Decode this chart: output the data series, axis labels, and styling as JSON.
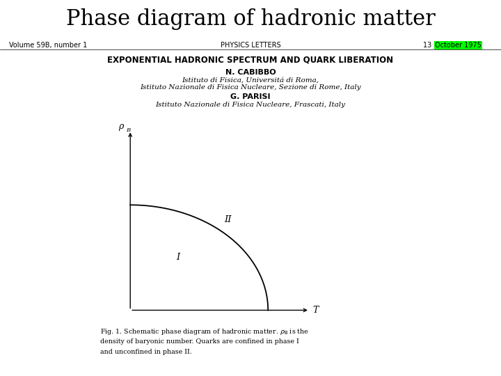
{
  "title": "Phase diagram of hadronic matter",
  "title_fontsize": 22,
  "title_font": "serif",
  "header_left": "Volume 59B, number 1",
  "header_center": "PHYSICS LETTERS",
  "header_right_prefix": "13 ",
  "header_right_highlight": "October 1975",
  "highlight_color": "#00ff00",
  "paper_title": "EXPONENTIAL HADRONIC SPECTRUM AND QUARK LIBERATION",
  "author1": "N. CABIBBO",
  "affil1a": "Istituto di Fisica, Universitá di Roma,",
  "affil1b": "Istituto Nazionale di Fisica Nucleare, Sezione di Rome, Italy",
  "author2": "G. PARISI",
  "affil2": "Istituto Nazionale di Fisica Nucleare, Frascati, Italy",
  "xlabel": "T",
  "ylabel_sym": "ρ",
  "ylabel_sub": "B",
  "phase_I_label": "I",
  "phase_II_label": "II",
  "bg_color": "#ffffff",
  "curve_color": "#000000",
  "text_color": "#000000"
}
